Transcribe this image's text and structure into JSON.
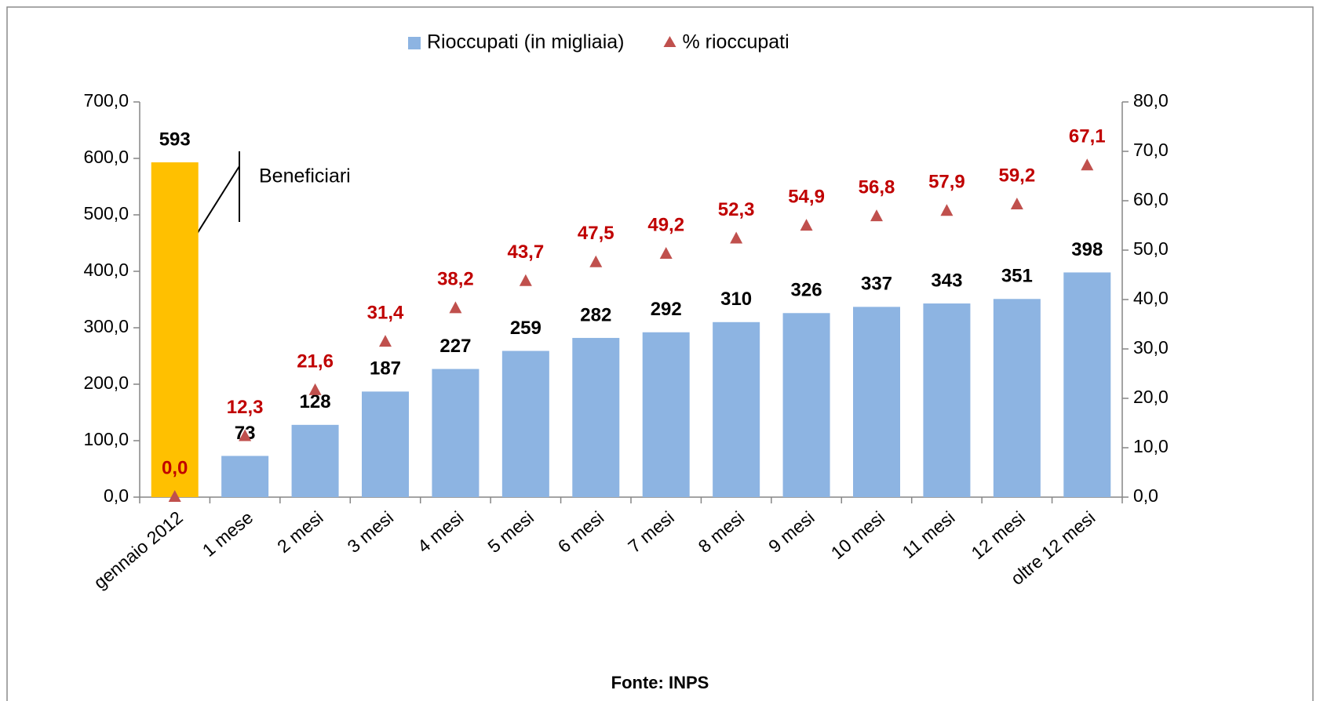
{
  "chart_data": {
    "type": "bar_with_markers",
    "legend": "top",
    "categories": [
      "gennaio 2012",
      "1 mese",
      "2 mesi",
      "3 mesi",
      "4 mesi",
      "5 mesi",
      "6 mesi",
      "7 mesi",
      "8 mesi",
      "9 mesi",
      "10 mesi",
      "11 mesi",
      "12 mesi",
      "oltre 12 mesi"
    ],
    "series": [
      {
        "name": "Rioccupati (in migliaia)",
        "color": "#8db4e2",
        "colors": [
          "#ffc000",
          "#8db4e2",
          "#8db4e2",
          "#8db4e2",
          "#8db4e2",
          "#8db4e2",
          "#8db4e2",
          "#8db4e2",
          "#8db4e2",
          "#8db4e2",
          "#8db4e2",
          "#8db4e2",
          "#8db4e2",
          "#8db4e2"
        ],
        "values": [
          593,
          73,
          128,
          187,
          227,
          259,
          282,
          292,
          310,
          326,
          337,
          343,
          351,
          398
        ]
      },
      {
        "name": "% rioccupati",
        "color": "#c0504d",
        "axis": "y2",
        "label_color": "#c00000",
        "values": [
          0.0,
          12.3,
          21.6,
          31.4,
          38.2,
          43.7,
          47.5,
          49.2,
          52.3,
          54.9,
          56.8,
          57.9,
          59.2,
          67.1
        ],
        "value_labels": [
          "0,0",
          "12,3",
          "21,6",
          "31,4",
          "38,2",
          "43,7",
          "47,5",
          "49,2",
          "52,3",
          "54,9",
          "56,8",
          "57,9",
          "59,2",
          "67,1"
        ]
      }
    ],
    "ylim": [
      0,
      700
    ],
    "yticks": [
      {
        "value": 0,
        "label": "0,0"
      },
      {
        "value": 100,
        "label": "100,0"
      },
      {
        "value": 200,
        "label": "200,0"
      },
      {
        "value": 300,
        "label": "300,0"
      },
      {
        "value": 400,
        "label": "400,0"
      },
      {
        "value": 500,
        "label": "500,0"
      },
      {
        "value": 600,
        "label": "600,0"
      },
      {
        "value": 700,
        "label": "700,0"
      }
    ],
    "y2lim": [
      0,
      80
    ],
    "y2ticks": [
      {
        "value": 0,
        "label": "0,0"
      },
      {
        "value": 10,
        "label": "10,0"
      },
      {
        "value": 20,
        "label": "20,0"
      },
      {
        "value": 30,
        "label": "30,0"
      },
      {
        "value": 40,
        "label": "40,0"
      },
      {
        "value": 50,
        "label": "50,0"
      },
      {
        "value": 60,
        "label": "60,0"
      },
      {
        "value": 70,
        "label": "70,0"
      },
      {
        "value": 80,
        "label": "80,0"
      }
    ],
    "annotation": "Beneficiari",
    "source": "Fonte: INPS"
  }
}
